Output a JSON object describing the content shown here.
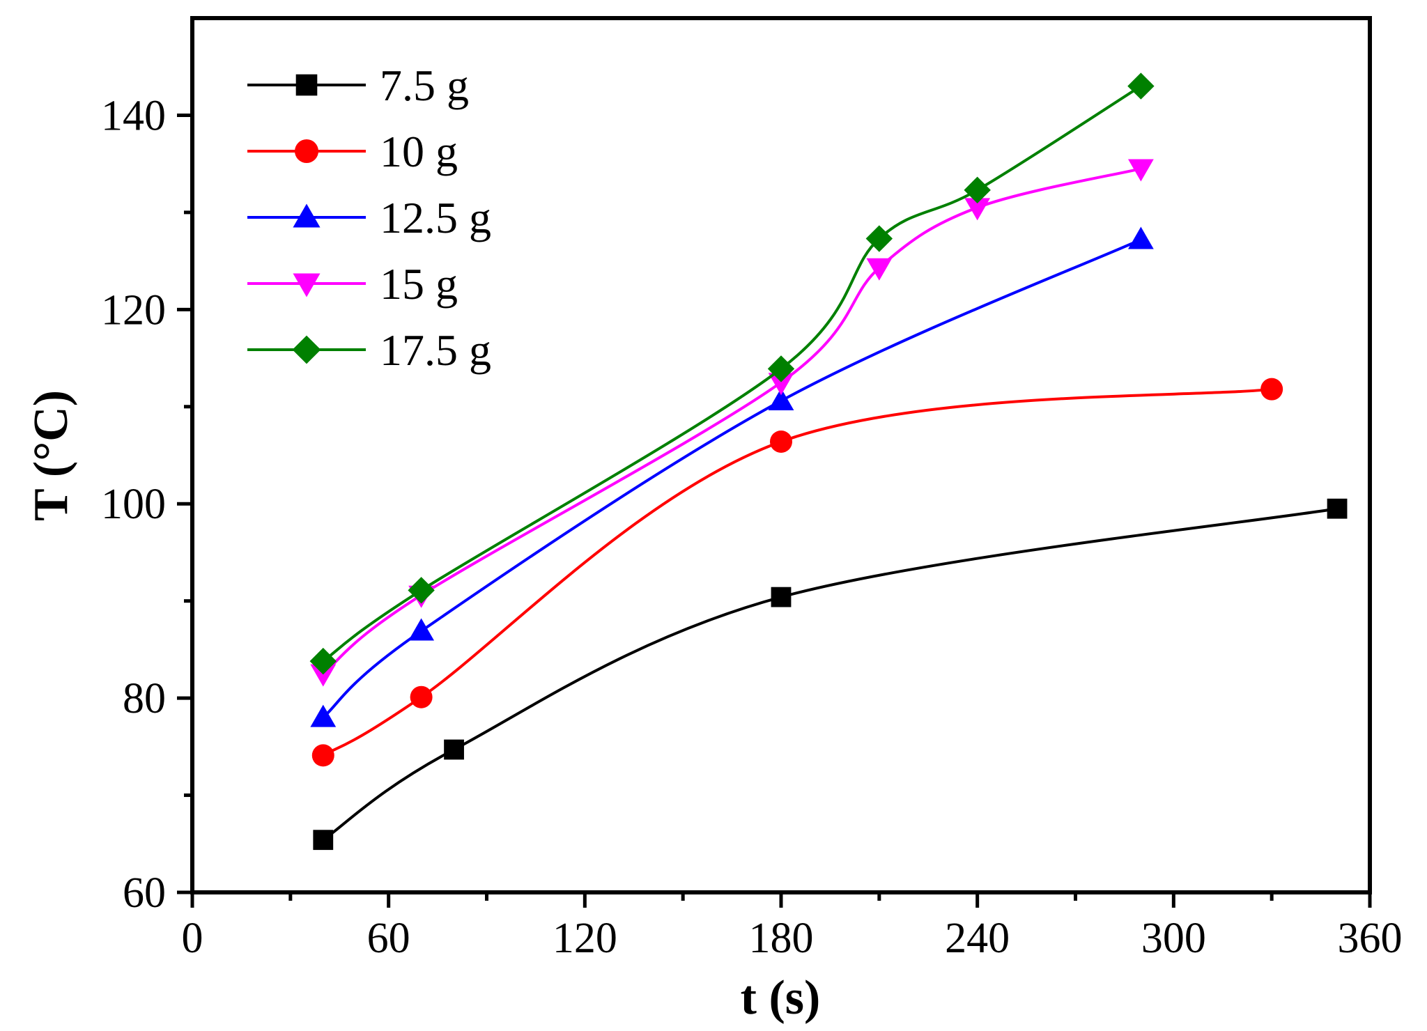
{
  "chart_data": {
    "type": "line",
    "title": "",
    "xlabel": "t (s)",
    "ylabel": "T (°C)",
    "xlim": [
      0,
      360
    ],
    "ylim": [
      60,
      150
    ],
    "xticks": [
      0,
      60,
      120,
      180,
      240,
      300,
      360
    ],
    "yticks": [
      60,
      80,
      100,
      120,
      140
    ],
    "grid": false,
    "legend_position": "top-left",
    "series": [
      {
        "name": "7.5 g",
        "color": "#000000",
        "marker": "square",
        "x": [
          40,
          80,
          180,
          350
        ],
        "y": [
          65.4,
          74.7,
          90.4,
          99.5
        ]
      },
      {
        "name": "10 g",
        "color": "#ff0000",
        "marker": "circle",
        "x": [
          40,
          70,
          180,
          330
        ],
        "y": [
          74.1,
          80.1,
          106.4,
          111.8
        ]
      },
      {
        "name": "12.5 g",
        "color": "#0000ff",
        "marker": "triangle-up",
        "x": [
          40,
          70,
          180,
          290
        ],
        "y": [
          78.0,
          86.9,
          110.6,
          127.2
        ]
      },
      {
        "name": "15 g",
        "color": "#ff00ff",
        "marker": "triangle-down",
        "x": [
          40,
          70,
          180,
          210,
          240,
          290
        ],
        "y": [
          82.5,
          90.6,
          112.5,
          124.3,
          130.5,
          134.5
        ]
      },
      {
        "name": "17.5 g",
        "color": "#008000",
        "marker": "diamond",
        "x": [
          40,
          70,
          180,
          210,
          240,
          290
        ],
        "y": [
          83.8,
          91.1,
          113.9,
          127.3,
          132.3,
          143.0
        ]
      }
    ]
  }
}
